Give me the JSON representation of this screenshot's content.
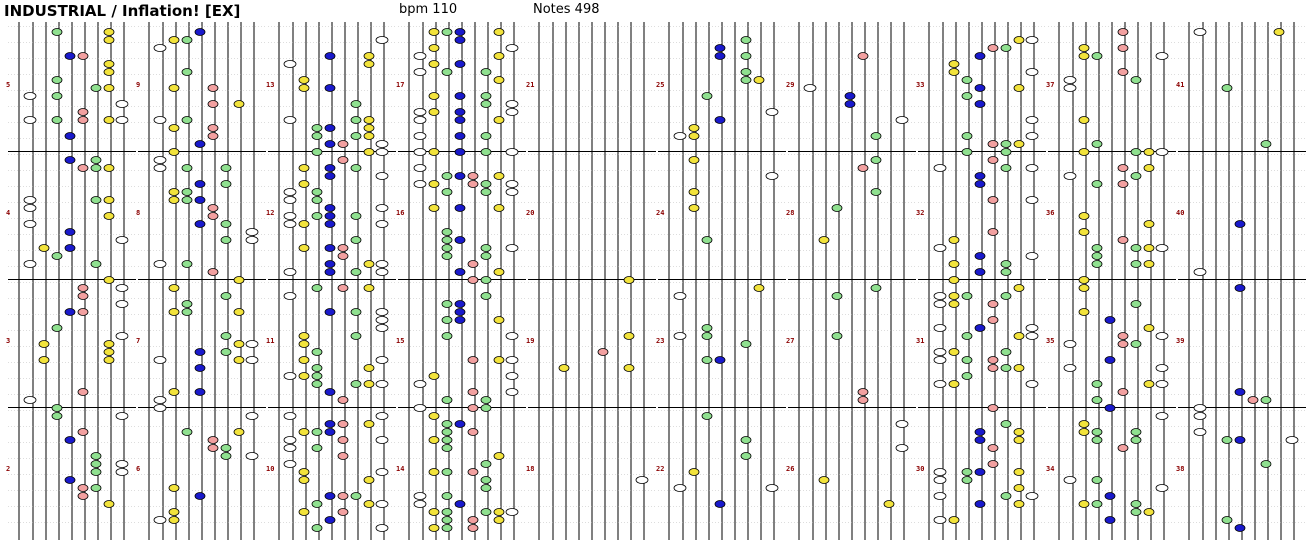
{
  "header": {
    "title": "INDUSTRIAL / Inflation! [EX]",
    "bpm_label": "bpm 110",
    "notes_label": "Notes 498"
  },
  "chart_data": {
    "type": "rhythm-game-chart",
    "lane_count": 8,
    "lane_kinds": [
      "white",
      "yellow",
      "green",
      "blue",
      "red",
      "green",
      "yellow",
      "white"
    ],
    "note_colors": {
      "white": "#ffffff",
      "yellow": "#f2e33c",
      "green": "#8fe08f",
      "blue": "#1a1acc",
      "red": "#f2a0a0"
    },
    "column_count": 10,
    "measures_per_column": 4,
    "measure_count": 41,
    "measure_labels": [
      2,
      3,
      4,
      5,
      6,
      7,
      8,
      9,
      10,
      11,
      12,
      13,
      14,
      15,
      16,
      17,
      18,
      19,
      20,
      21,
      22,
      23,
      24,
      25,
      26,
      27,
      28,
      29,
      30,
      31,
      32,
      33,
      34,
      35,
      36,
      37,
      38,
      39,
      40,
      41
    ]
  }
}
